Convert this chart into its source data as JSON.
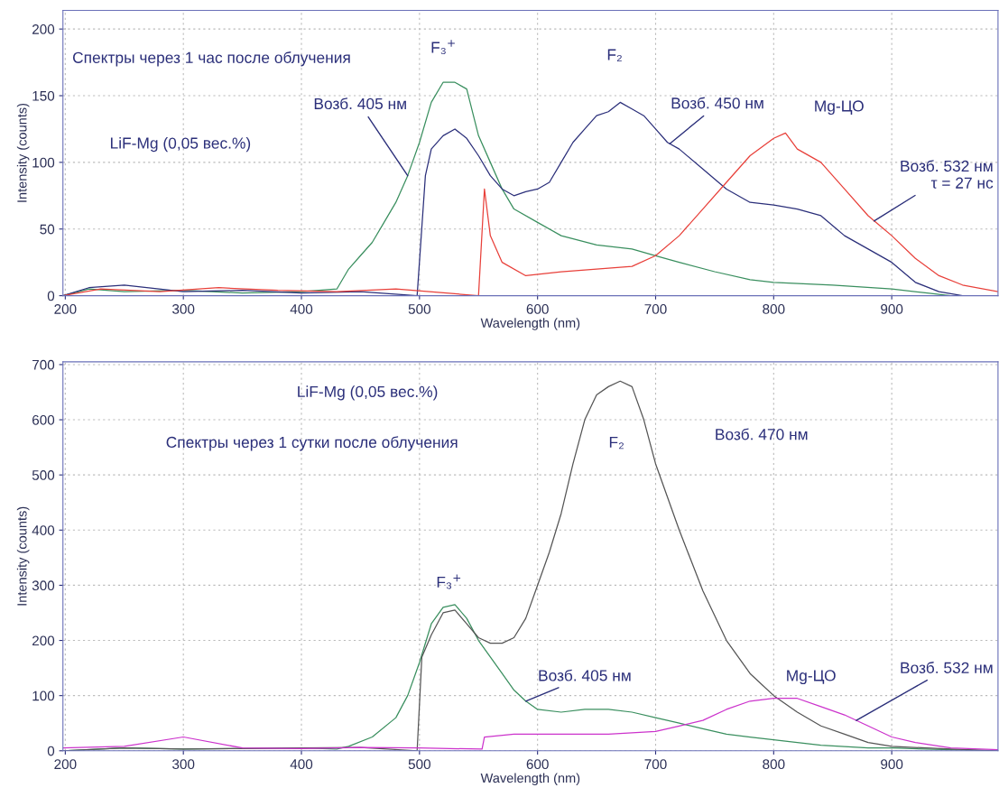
{
  "chart_data": [
    {
      "type": "line",
      "title": "Спектры через 1 час после облучения",
      "subtitle": "LiF-Mg (0,05 вес.%)",
      "xlabel": "Wavelength (nm)",
      "ylabel": "Intensity (counts)",
      "xlim": [
        198,
        990
      ],
      "ylim": [
        0,
        214
      ],
      "xticks": [
        200,
        300,
        400,
        500,
        600,
        700,
        800,
        900
      ],
      "yticks": [
        0,
        50,
        100,
        150,
        200
      ],
      "grid": true,
      "legend": false,
      "marker": "none",
      "line_style": "solid",
      "series": [
        {
          "color": "#3a8f5f",
          "x": [
            198,
            220,
            250,
            300,
            350,
            400,
            430,
            440,
            450,
            460,
            470,
            480,
            490,
            500,
            510,
            520,
            530,
            540,
            550,
            560,
            570,
            580,
            600,
            620,
            650,
            680,
            700,
            720,
            750,
            780,
            800,
            850,
            900,
            930,
            950,
            990
          ],
          "values": [
            0,
            5,
            3,
            4,
            2,
            3,
            5,
            20,
            30,
            40,
            55,
            70,
            90,
            115,
            145,
            160,
            160,
            155,
            120,
            100,
            80,
            65,
            55,
            45,
            38,
            35,
            30,
            25,
            18,
            12,
            10,
            8,
            5,
            2,
            0,
            0
          ]
        },
        {
          "color": "#2b2f7a",
          "x": [
            198,
            220,
            250,
            300,
            350,
            400,
            450,
            498,
            505,
            510,
            520,
            530,
            540,
            550,
            560,
            570,
            580,
            590,
            600,
            610,
            620,
            630,
            640,
            650,
            660,
            670,
            680,
            690,
            700,
            710,
            720,
            740,
            760,
            780,
            800,
            820,
            840,
            860,
            880,
            900,
            920,
            940,
            960,
            990
          ],
          "values": [
            0,
            6,
            8,
            3,
            4,
            2,
            3,
            0,
            90,
            110,
            120,
            125,
            118,
            105,
            90,
            80,
            75,
            78,
            80,
            85,
            100,
            115,
            125,
            135,
            138,
            145,
            140,
            135,
            125,
            115,
            110,
            95,
            80,
            70,
            68,
            65,
            60,
            45,
            35,
            25,
            10,
            3,
            0,
            0
          ]
        },
        {
          "color": "#e8403a",
          "x": [
            198,
            230,
            280,
            330,
            380,
            430,
            480,
            550,
            555,
            560,
            570,
            590,
            620,
            650,
            680,
            700,
            720,
            740,
            760,
            780,
            800,
            810,
            820,
            840,
            860,
            880,
            900,
            920,
            940,
            960,
            990
          ],
          "values": [
            0,
            5,
            3,
            6,
            4,
            3,
            5,
            0,
            80,
            45,
            25,
            15,
            18,
            20,
            22,
            30,
            45,
            65,
            85,
            105,
            118,
            122,
            110,
            100,
            80,
            60,
            45,
            28,
            15,
            8,
            3
          ]
        }
      ],
      "annotations": [
        "F₃$^{+}$",
        "F₂",
        {
          "text": "Возб. 405 нм",
          "x": 490,
          "y": 90
        },
        {
          "text": "Возб. 450 нм",
          "x": 712,
          "y": 114
        },
        "Mg-ЦО",
        {
          "text": "Возб. 532 нм\nτ = 27 нс",
          "x": 885,
          "y": 56
        }
      ]
    },
    {
      "type": "line",
      "title": "Спектры через 1 сутки после облучения",
      "subtitle": "LiF-Mg (0,05 вес.%)",
      "xlabel": "Wavelength (nm)",
      "ylabel": "Intensity (counts)",
      "xlim": [
        198,
        990
      ],
      "ylim": [
        0,
        705
      ],
      "xticks": [
        200,
        300,
        400,
        500,
        600,
        700,
        800,
        900
      ],
      "yticks": [
        0,
        100,
        200,
        300,
        400,
        500,
        600,
        700
      ],
      "grid": true,
      "legend": false,
      "marker": "none",
      "line_style": "solid",
      "series": [
        {
          "color": "#3a8f5f",
          "x": [
            198,
            250,
            300,
            350,
            400,
            430,
            440,
            460,
            480,
            490,
            500,
            510,
            520,
            530,
            540,
            550,
            560,
            570,
            580,
            590,
            600,
            620,
            640,
            660,
            680,
            700,
            720,
            740,
            760,
            780,
            800,
            840,
            880,
            900,
            950,
            990
          ],
          "values": [
            0,
            5,
            3,
            4,
            5,
            3,
            8,
            25,
            60,
            100,
            160,
            230,
            260,
            265,
            240,
            200,
            170,
            140,
            110,
            90,
            75,
            70,
            75,
            75,
            70,
            60,
            50,
            40,
            30,
            25,
            20,
            10,
            5,
            5,
            2,
            0
          ]
        },
        {
          "color": "#555555",
          "x": [
            198,
            250,
            300,
            350,
            400,
            450,
            498,
            502,
            510,
            520,
            530,
            540,
            550,
            560,
            570,
            580,
            590,
            600,
            610,
            620,
            630,
            640,
            650,
            660,
            670,
            680,
            690,
            700,
            720,
            740,
            760,
            780,
            800,
            820,
            840,
            860,
            880,
            900,
            950,
            990
          ],
          "values": [
            0,
            5,
            3,
            4,
            5,
            6,
            0,
            170,
            210,
            250,
            255,
            230,
            205,
            195,
            195,
            205,
            240,
            300,
            360,
            430,
            520,
            600,
            645,
            660,
            670,
            660,
            600,
            520,
            400,
            290,
            200,
            140,
            100,
            70,
            45,
            30,
            15,
            8,
            3,
            0
          ]
        },
        {
          "color": "#cc33cc",
          "x": [
            198,
            250,
            300,
            350,
            400,
            450,
            500,
            553,
            555,
            580,
            620,
            660,
            700,
            720,
            740,
            760,
            780,
            800,
            820,
            840,
            860,
            880,
            900,
            920,
            950,
            990
          ],
          "values": [
            5,
            8,
            25,
            5,
            4,
            6,
            5,
            3,
            25,
            30,
            30,
            30,
            35,
            45,
            55,
            75,
            90,
            95,
            95,
            80,
            65,
            45,
            25,
            15,
            5,
            2
          ]
        }
      ],
      "annotations": [
        "F₃$^{+}$",
        "F₂",
        "Возб. 470 нм",
        {
          "text": "Возб. 405 нм",
          "x": 590,
          "y": 90
        },
        "Mg-ЦО",
        {
          "text": "Возб. 532 нм",
          "x": 870,
          "y": 55
        }
      ]
    }
  ]
}
